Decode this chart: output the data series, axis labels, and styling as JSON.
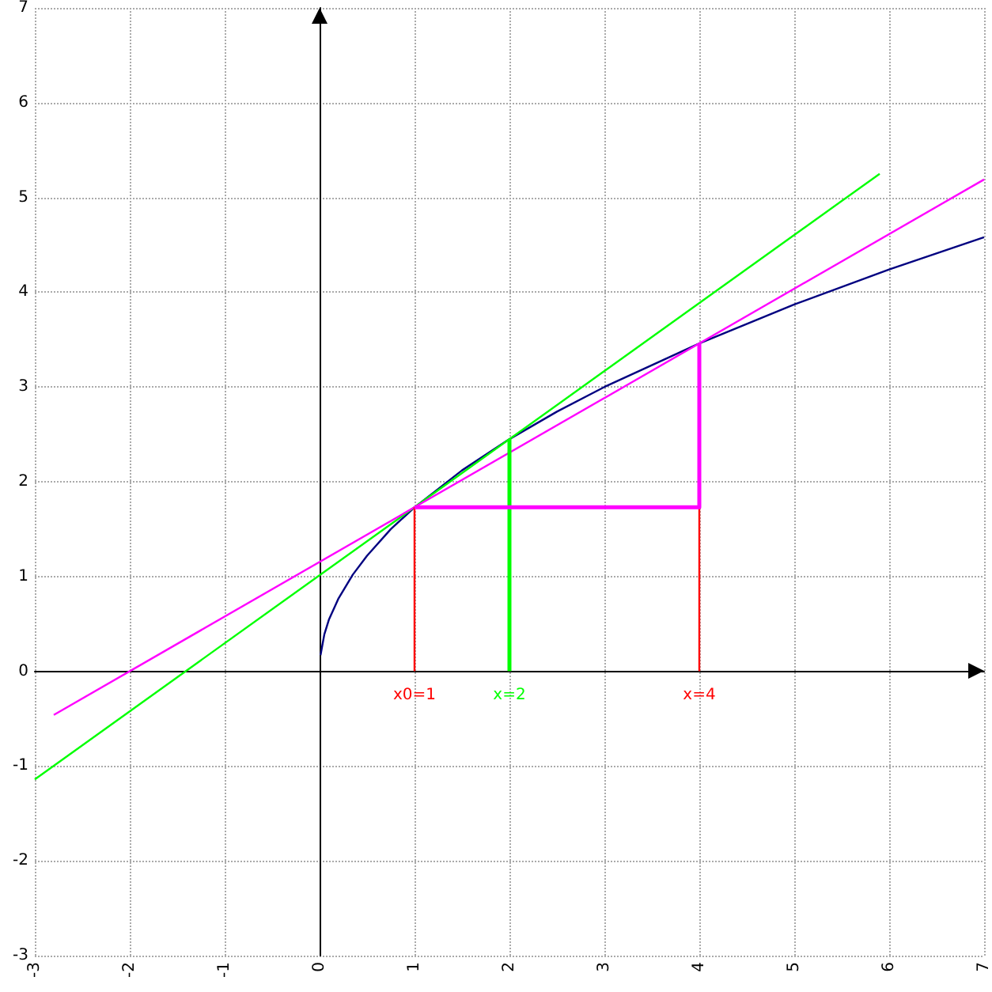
{
  "chart_data": {
    "type": "line",
    "xlim": [
      -3,
      7
    ],
    "ylim": [
      -3,
      7
    ],
    "xticks": [
      -3,
      -2,
      -1,
      0,
      1,
      2,
      3,
      4,
      5,
      6,
      7
    ],
    "yticks": [
      -3,
      -2,
      -1,
      0,
      1,
      2,
      3,
      4,
      5,
      6,
      7
    ],
    "grid": true,
    "marker": "none",
    "line_style": "solid",
    "series": [
      {
        "color": "#000080",
        "x": [
          0.01,
          0.05,
          0.1,
          0.2,
          0.35,
          0.5,
          0.75,
          1,
          1.5,
          2,
          2.5,
          3,
          4,
          5,
          6,
          7
        ],
        "values": [
          0.17,
          0.39,
          0.55,
          0.77,
          1.02,
          1.22,
          1.5,
          1.73,
          2.12,
          2.45,
          2.74,
          3,
          3.46,
          3.87,
          4.24,
          4.58
        ]
      },
      {
        "color": "#00ff00",
        "x": [
          -3,
          5.9
        ],
        "values": [
          -1.14,
          5.25
        ]
      },
      {
        "color": "#ff00ff",
        "x": [
          -2.8,
          7
        ],
        "values": [
          -0.46,
          5.19
        ]
      },
      {
        "color": "#ff0000",
        "x": [
          1,
          1
        ],
        "values": [
          0,
          1.73
        ]
      },
      {
        "color": "#ff0000",
        "x": [
          4,
          4
        ],
        "values": [
          0,
          1.73
        ]
      },
      {
        "color": "#00ff00",
        "x": [
          2,
          2
        ],
        "values": [
          0,
          2.45
        ]
      },
      {
        "color": "#ff00ff",
        "x": [
          1,
          4,
          4
        ],
        "values": [
          1.73,
          1.73,
          3.46
        ]
      }
    ],
    "annotations": [
      {
        "text": "x0=1",
        "x": 1,
        "y": 0
      },
      {
        "text": "x=2",
        "x": 2,
        "y": 0
      },
      {
        "text": "x=4",
        "x": 4,
        "y": 0
      }
    ]
  }
}
